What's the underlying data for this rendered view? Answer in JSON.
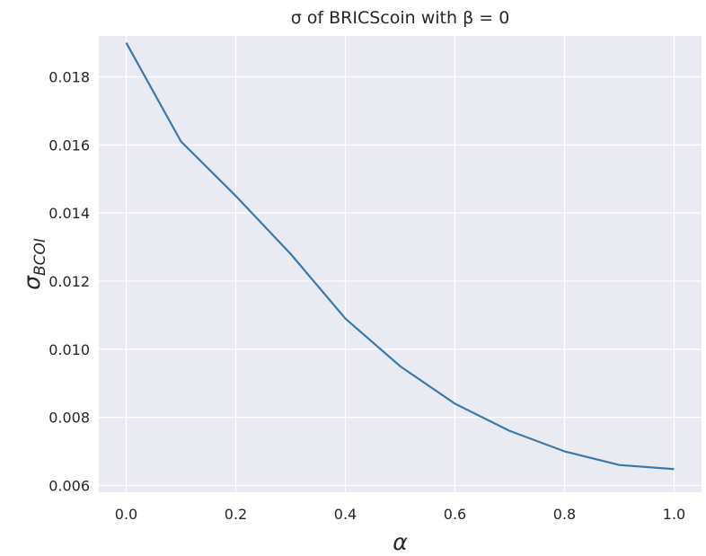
{
  "chart_data": {
    "type": "line",
    "title": "σ of BRICScoin with β = 0",
    "xlabel": "α",
    "ylabel": "σ",
    "ylabel_subscript": "BCOI",
    "xlim": [
      -0.05,
      1.05
    ],
    "ylim": [
      0.0058,
      0.0192
    ],
    "x_ticks": [
      0.0,
      0.2,
      0.4,
      0.6,
      0.8,
      1.0
    ],
    "x_tick_labels": [
      "0.0",
      "0.2",
      "0.4",
      "0.6",
      "0.8",
      "1.0"
    ],
    "y_ticks": [
      0.006,
      0.008,
      0.01,
      0.012,
      0.014,
      0.016,
      0.018
    ],
    "y_tick_labels": [
      "0.006",
      "0.008",
      "0.010",
      "0.012",
      "0.014",
      "0.016",
      "0.018"
    ],
    "grid": true,
    "background": "#eaeaf2",
    "series": [
      {
        "color": "#3a78b0",
        "x": [
          0.0,
          0.1,
          0.2,
          0.3,
          0.4,
          0.5,
          0.6,
          0.7,
          0.8,
          0.9,
          1.0
        ],
        "y": [
          0.019,
          0.0161,
          0.0145,
          0.0128,
          0.0109,
          0.0095,
          0.0084,
          0.0076,
          0.007,
          0.0066,
          0.00648
        ]
      }
    ]
  }
}
